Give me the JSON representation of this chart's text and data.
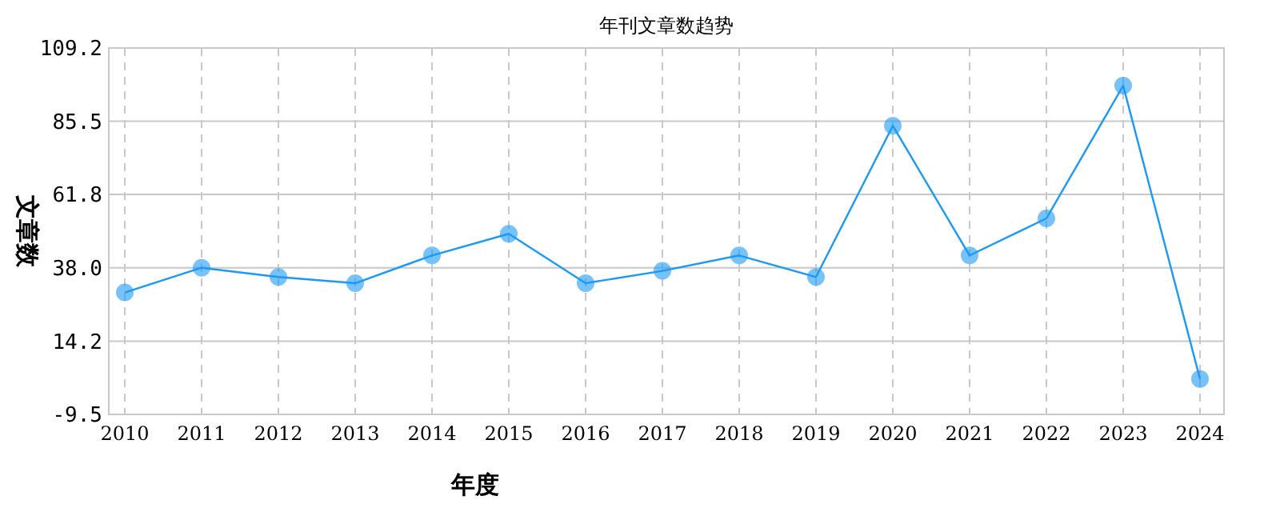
{
  "chart_data": {
    "type": "line",
    "title": "年刊文章数趋势",
    "xlabel": "年度",
    "ylabel": "文章数",
    "categories": [
      "2010",
      "2011",
      "2012",
      "2013",
      "2014",
      "2015",
      "2016",
      "2017",
      "2018",
      "2019",
      "2020",
      "2021",
      "2022",
      "2023",
      "2024"
    ],
    "series": [
      {
        "color": "#1a9af5",
        "values": [
          30,
          38,
          35,
          33,
          42,
          49,
          33,
          37,
          42,
          35,
          84,
          42,
          54,
          97,
          2
        ]
      }
    ],
    "ylim": [
      -9.5,
      109.2
    ],
    "yticks": [
      {
        "value": -9.5,
        "label": "-9.5"
      },
      {
        "value": 14.2,
        "label": "14.2"
      },
      {
        "value": 38,
        "label": "38.0"
      },
      {
        "value": 61.8,
        "label": "61.8"
      },
      {
        "value": 85.5,
        "label": "85.5"
      },
      {
        "value": 109.2,
        "label": "109.2"
      }
    ],
    "grid": true,
    "marker": "circle",
    "line_style": "solid"
  }
}
